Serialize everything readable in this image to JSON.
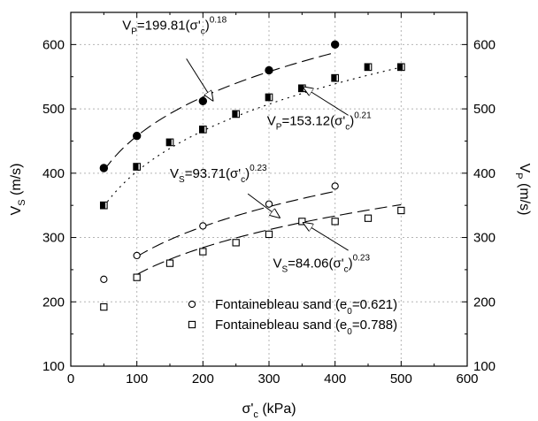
{
  "chart_data": {
    "type": "scatter",
    "xlabel": {
      "main": "σ'",
      "sub": "c",
      "unit": " (kPa)"
    },
    "ylabel_left": {
      "main": "V",
      "sub": "S",
      "unit": " (m/s)"
    },
    "ylabel_right": {
      "main": "V",
      "sub": "P",
      "unit": " (m/s)"
    },
    "xlim": [
      0,
      600
    ],
    "ylim": [
      100,
      650
    ],
    "xticks": [
      0,
      100,
      200,
      300,
      400,
      500,
      600
    ],
    "yticks": [
      100,
      200,
      300,
      400,
      500,
      600
    ],
    "grid": true,
    "legend_position": "bottom-right",
    "series": [
      {
        "key": "vp_0621",
        "marker": "filled-circle",
        "x": [
          50,
          100,
          200,
          300,
          400
        ],
        "y": [
          408,
          458,
          512,
          560,
          600
        ]
      },
      {
        "key": "vp_0788",
        "marker": "half-filled-square",
        "x": [
          50,
          100,
          150,
          200,
          250,
          300,
          350,
          400,
          450,
          500
        ],
        "y": [
          350,
          410,
          448,
          468,
          492,
          518,
          532,
          548,
          565,
          565
        ]
      },
      {
        "key": "vs_0621",
        "marker": "open-circle",
        "x": [
          50,
          100,
          200,
          300,
          400
        ],
        "y": [
          235,
          272,
          318,
          352,
          380
        ]
      },
      {
        "key": "vs_0788",
        "marker": "open-square",
        "x": [
          50,
          100,
          150,
          200,
          250,
          300,
          350,
          400,
          450,
          500
        ],
        "y": [
          192,
          238,
          260,
          278,
          292,
          305,
          325,
          325,
          330,
          342
        ]
      }
    ],
    "fits": [
      {
        "key": "fit_vp_0621",
        "a": 199.81,
        "b": 0.18,
        "x0": 50,
        "x1": 400,
        "dash": "14 6"
      },
      {
        "key": "fit_vp_0788",
        "a": 153.12,
        "b": 0.21,
        "x0": 50,
        "x1": 500,
        "dash": "2 5"
      },
      {
        "key": "fit_vs_0621",
        "a": 93.71,
        "b": 0.23,
        "x0": 100,
        "x1": 400,
        "dash": "14 6"
      },
      {
        "key": "fit_vs_0788",
        "a": 84.06,
        "b": 0.23,
        "x0": 100,
        "x1": 500,
        "dash": "14 6"
      }
    ],
    "annotations": [
      {
        "key": "eq-vp-0621",
        "lhs": "V",
        "lhs_sub": "P",
        "coef": "=199.81(σ'",
        "coef_sub": "c",
        "close": ")",
        "exp": "0.18",
        "text_x": 78,
        "text_y": 623,
        "arrow_from": [
          175,
          578
        ],
        "arrow_to": [
          215,
          513
        ]
      },
      {
        "key": "eq-vp-0788",
        "lhs": "V",
        "lhs_sub": "P",
        "coef": "=153.12(σ'",
        "coef_sub": "c",
        "close": ")",
        "exp": "0.21",
        "text_x": 297,
        "text_y": 475,
        "arrow_from": [
          420,
          490
        ],
        "arrow_to": [
          352,
          534
        ]
      },
      {
        "key": "eq-vs-0621",
        "lhs": "V",
        "lhs_sub": "S",
        "coef": "=93.71(σ'",
        "coef_sub": "c",
        "close": ")",
        "exp": "0.23",
        "text_x": 150,
        "text_y": 393,
        "arrow_from": [
          268,
          368
        ],
        "arrow_to": [
          316,
          331
        ]
      },
      {
        "key": "eq-vs-0788",
        "lhs": "V",
        "lhs_sub": "S",
        "coef": "=84.06(σ'",
        "coef_sub": "c",
        "close": ")",
        "exp": "0.23",
        "text_x": 306,
        "text_y": 253,
        "arrow_from": [
          420,
          280
        ],
        "arrow_to": [
          352,
          323
        ]
      }
    ],
    "legend": [
      {
        "marker": "open-circle",
        "label": "Fontainebleau sand (e",
        "sub": "0",
        "value": "=0.621)"
      },
      {
        "marker": "open-square",
        "label": "Fontainebleau sand (e",
        "sub": "0",
        "value": "=0.788)"
      }
    ]
  }
}
